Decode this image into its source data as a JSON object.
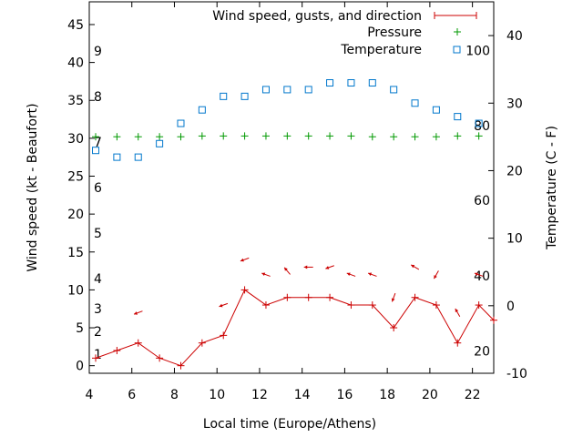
{
  "chart_data": {
    "type": "line",
    "xlabel": "Local time (Europe/Athens)",
    "ylabel_left": "Wind speed (kt - Beaufort)",
    "ylabel_right": "Temperature (C - F)",
    "xlim": [
      4,
      23
    ],
    "ylim_left": [
      -1,
      48
    ],
    "ylim_right": [
      -10,
      45
    ],
    "x_ticks": [
      4,
      6,
      8,
      10,
      12,
      14,
      16,
      18,
      20,
      22
    ],
    "y_ticks_left": [
      0,
      5,
      10,
      15,
      20,
      25,
      30,
      35,
      40,
      45
    ],
    "y_ticks_right": [
      -10,
      0,
      10,
      20,
      30,
      40
    ],
    "beaufort_labels": [
      {
        "label": "1",
        "y": 1.5
      },
      {
        "label": "2",
        "y": 4.5
      },
      {
        "label": "3",
        "y": 7.5
      },
      {
        "label": "4",
        "y": 11.5
      },
      {
        "label": "5",
        "y": 17.5
      },
      {
        "label": "6",
        "y": 23.5
      },
      {
        "label": "7",
        "y": 29.5
      },
      {
        "label": "8",
        "y": 35.5
      },
      {
        "label": "9",
        "y": 41.5
      }
    ],
    "fahrenheit_labels": [
      {
        "label": "20",
        "c": -6.7
      },
      {
        "label": "40",
        "c": 4.4
      },
      {
        "label": "60",
        "c": 15.6
      },
      {
        "label": "80",
        "c": 26.7
      },
      {
        "label": "100",
        "c": 37.8
      }
    ],
    "legend": [
      {
        "name": "Wind speed, gusts, and direction",
        "color": "#cc0000"
      },
      {
        "name": "Pressure",
        "color": "#009900"
      },
      {
        "name": "Temperature",
        "color": "#0077cc"
      }
    ],
    "series": [
      {
        "name": "Wind speed, gusts, and direction",
        "color": "#cc0000",
        "x": [
          4.3,
          5.3,
          6.3,
          7.3,
          8.3,
          9.3,
          10.3,
          11.3,
          12.3,
          13.3,
          14.3,
          15.3,
          16.3,
          17.3,
          18.3,
          19.3,
          20.3,
          21.3,
          22.3,
          23
        ],
        "y": [
          1,
          2,
          3,
          1,
          0,
          3,
          4,
          10,
          8,
          9,
          9,
          9,
          8,
          8,
          5,
          9,
          8,
          3,
          8,
          6
        ]
      },
      {
        "name": "Pressure",
        "color": "#009900",
        "x": [
          4.3,
          5.3,
          6.3,
          7.3,
          8.3,
          9.3,
          10.3,
          11.3,
          12.3,
          13.3,
          14.3,
          15.3,
          16.3,
          17.3,
          18.3,
          19.3,
          20.3,
          21.3,
          22.3
        ],
        "y": [
          30.2,
          30.2,
          30.2,
          30.2,
          30.2,
          30.3,
          30.3,
          30.3,
          30.3,
          30.3,
          30.3,
          30.3,
          30.3,
          30.2,
          30.2,
          30.2,
          30.2,
          30.3,
          30.3
        ]
      },
      {
        "name": "Temperature",
        "color": "#0077cc",
        "x": [
          4.3,
          5.3,
          6.3,
          7.3,
          8.3,
          9.3,
          10.3,
          11.3,
          12.3,
          13.3,
          14.3,
          15.3,
          16.3,
          17.3,
          18.3,
          19.3,
          20.3,
          21.3,
          22.3
        ],
        "y": [
          23,
          22,
          22,
          24,
          27,
          29,
          31,
          31,
          32,
          32,
          32,
          33,
          33,
          33,
          32,
          30,
          29,
          28,
          27
        ]
      }
    ],
    "wind_arrows": [
      {
        "x": 6.3,
        "y": 7,
        "angle": 200
      },
      {
        "x": 10.3,
        "y": 8,
        "angle": 200
      },
      {
        "x": 11.3,
        "y": 14,
        "angle": 200
      },
      {
        "x": 12.3,
        "y": 12,
        "angle": 160
      },
      {
        "x": 13.3,
        "y": 12.5,
        "angle": 130
      },
      {
        "x": 14.3,
        "y": 13,
        "angle": 180
      },
      {
        "x": 15.3,
        "y": 13,
        "angle": 200
      },
      {
        "x": 16.3,
        "y": 12,
        "angle": 160
      },
      {
        "x": 17.3,
        "y": 12,
        "angle": 160
      },
      {
        "x": 18.3,
        "y": 9,
        "angle": 250
      },
      {
        "x": 19.3,
        "y": 13,
        "angle": 150
      },
      {
        "x": 20.3,
        "y": 12,
        "angle": 240
      },
      {
        "x": 21.3,
        "y": 7,
        "angle": 120
      },
      {
        "x": 22.3,
        "y": 12,
        "angle": 160
      }
    ]
  }
}
